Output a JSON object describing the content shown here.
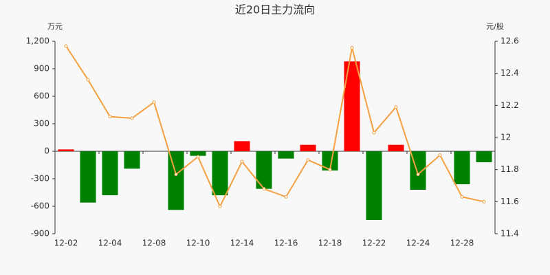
{
  "chart_data": {
    "type": "bar_line",
    "title": "近20日主力流向",
    "y_unit": "万元",
    "y2_unit": "元/股",
    "categories": [
      "12-02",
      null,
      "12-04",
      null,
      "12-08",
      null,
      "12-10",
      null,
      "12-14",
      null,
      "12-16",
      null,
      "12-18",
      null,
      "12-22",
      null,
      "12-24",
      null,
      "12-28",
      null
    ],
    "series": [
      {
        "type": "bar",
        "positive_color": "#ff0000",
        "negative_color": "#008000",
        "values": [
          20,
          -560,
          -480,
          -190,
          0,
          -640,
          -50,
          -480,
          110,
          -410,
          -80,
          70,
          -210,
          980,
          -750,
          70,
          -420,
          0,
          -360,
          -120
        ]
      },
      {
        "type": "line",
        "axis": "y2",
        "color": "#f4a040",
        "values": [
          12.57,
          12.36,
          12.13,
          12.12,
          12.22,
          11.77,
          11.88,
          11.57,
          11.85,
          11.68,
          11.63,
          11.86,
          11.8,
          12.56,
          12.03,
          12.19,
          11.77,
          11.89,
          11.63,
          11.6
        ]
      }
    ],
    "ylim": [
      -900,
      1200
    ],
    "yticks": [
      -900,
      -600,
      -300,
      0,
      300,
      600,
      900,
      {
        "value": 1200,
        "label": "1,200"
      }
    ],
    "y2lim": [
      11.4,
      12.6
    ],
    "y2ticks": [
      11.4,
      11.6,
      11.8,
      12,
      12.2,
      12.4,
      12.6
    ]
  }
}
